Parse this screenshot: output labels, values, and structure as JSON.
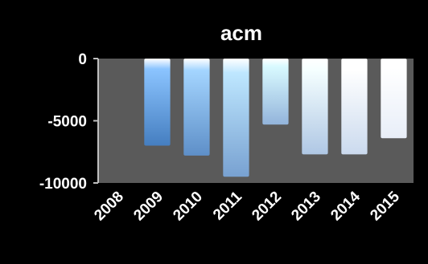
{
  "chart_data": {
    "type": "bar",
    "title": "acm",
    "categories": [
      "2008",
      "2009",
      "2010",
      "2011",
      "2012",
      "2013",
      "2014",
      "2015"
    ],
    "values": [
      0,
      -7000,
      -7800,
      -9500,
      -5300,
      -7700,
      -7700,
      -6400
    ],
    "ylim": [
      -10000,
      0
    ],
    "yticks": [
      0,
      -5000,
      -10000
    ],
    "ytick_labels": [
      "0",
      "-5000",
      "-10000"
    ],
    "xlabel": "",
    "ylabel": "",
    "grid": false,
    "legend": "none",
    "colors": {
      "background": "#000000",
      "plot_area": "#5a5a5a",
      "text": "#ffffff",
      "axis": "#bfbfbf",
      "bar_dark": "#2f6fb8",
      "bar_light": "#e8eef8"
    }
  }
}
